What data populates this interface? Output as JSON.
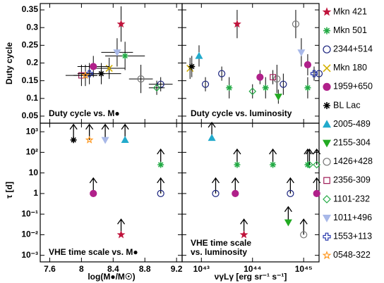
{
  "chart_data": {
    "type": "scatter",
    "ylabel_top": "Duty cycle",
    "ylabel_bottom": "τ [d]",
    "xlabel_left": "log(M●/M☉)",
    "xlabel_right": "νγLγ [erg sr⁻¹ s⁻¹]",
    "legend": [
      {
        "name": "Mkn 421",
        "color": "#c0143c",
        "marker": "star"
      },
      {
        "name": "Mkn 501",
        "color": "#22aa44",
        "marker": "asterisk"
      },
      {
        "name": "2344+514",
        "color": "#1a237e",
        "marker": "circle"
      },
      {
        "name": "Mkn 180",
        "color": "#d4b000",
        "marker": "x"
      },
      {
        "name": "1959+650",
        "color": "#b0208a",
        "marker": "dot"
      },
      {
        "name": "BL Lac",
        "color": "#000000",
        "marker": "asterisk"
      },
      {
        "name": "2005-489",
        "color": "#22aacc",
        "marker": "triangle-up"
      },
      {
        "name": "2155-304",
        "color": "#22aa22",
        "marker": "triangle-down"
      },
      {
        "name": "1426+428",
        "color": "#777777",
        "marker": "circle"
      },
      {
        "name": "2356-309",
        "color": "#a0205a",
        "marker": "square"
      },
      {
        "name": "1101-232",
        "color": "#22aa44",
        "marker": "diamond"
      },
      {
        "name": "1011+496",
        "color": "#a8b8e8",
        "marker": "triangle-down"
      },
      {
        "name": "1553+113",
        "color": "#2233aa",
        "marker": "cross"
      },
      {
        "name": "0548-322",
        "color": "#ff9922",
        "marker": "star-open"
      }
    ],
    "panels": [
      {
        "annotation": [
          "Duty cycle vs. M●"
        ],
        "xlim": [
          7.48,
          9.27
        ],
        "ylim": [
          0.03,
          0.368
        ],
        "xticks": [
          7.6,
          8,
          8.4,
          8.8,
          9.2
        ],
        "yticks": [
          0.05,
          0.1,
          0.15,
          0.2,
          0.25,
          0.3,
          0.35
        ],
        "series": [
          {
            "x": [
              8.5
            ],
            "values": [
              0.31
            ],
            "xerr": [
              0.02
            ],
            "yerr": [
              0.05
            ]
          },
          {
            "x": [
              8.55
            ],
            "values": [
              0.22
            ],
            "xerr": [
              0.25
            ],
            "yerr": [
              0.04
            ]
          },
          {
            "x": [
              9.0
            ],
            "values": [
              0.14
            ],
            "xerr": [
              0.15
            ],
            "yerr": [
              0.02
            ]
          },
          {
            "x": [
              8.35
            ],
            "values": [
              0.185
            ],
            "xerr": [
              0.2
            ],
            "yerr": [
              0.03
            ]
          },
          {
            "x": [
              8.15
            ],
            "values": [
              0.19
            ],
            "xerr": [
              0.2
            ],
            "yerr": [
              0.03
            ]
          },
          {
            "x": [
              8.25
            ],
            "values": [
              0.17
            ],
            "xerr": [
              0.25
            ],
            "yerr": [
              0.03
            ]
          },
          {
            "x": [],
            "values": []
          },
          {
            "x": [],
            "values": []
          },
          {
            "x": [
              8.75
            ],
            "values": [
              0.155
            ],
            "xerr": [
              0.15
            ],
            "yerr": [
              0.04
            ]
          },
          {
            "x": [
              8.0
            ],
            "values": [
              0.165
            ],
            "xerr": [
              0.2
            ],
            "yerr": [
              0.03
            ]
          },
          {
            "x": [
              8.95
            ],
            "values": [
              0.13
            ],
            "xerr": [
              0.1
            ],
            "yerr": [
              0.02
            ]
          },
          {
            "x": [
              8.45
            ],
            "values": [
              0.23
            ],
            "xerr": [
              0.2
            ],
            "yerr": [
              0.04
            ]
          },
          {
            "x": [
              8.1
            ],
            "values": [
              0.17
            ],
            "xerr": [
              0.15
            ],
            "yerr": [
              0.03
            ]
          },
          {
            "x": [
              8.05
            ],
            "values": [
              0.165
            ],
            "xerr": [
              0.15
            ],
            "yerr": [
              0.03
            ]
          }
        ]
      },
      {
        "annotation": [
          "Duty cycle vs. luminosity"
        ],
        "xscale": "log",
        "xlim": [
          4.2e+42,
          2e+45
        ],
        "ylim": [
          0.03,
          0.368
        ],
        "xticks": [
          {
            "value": 1e+43,
            "label": "10⁴³"
          },
          {
            "value": 1e+44,
            "label": "10⁴⁴"
          },
          {
            "value": 1e+45,
            "label": "10⁴⁵"
          }
        ],
        "yticks": [
          0.05,
          0.1,
          0.15,
          0.2,
          0.25,
          0.3,
          0.35
        ],
        "series": [
          {
            "x": [
              5e+43
            ],
            "values": [
              0.31
            ],
            "yerr": [
              0.04
            ]
          },
          {
            "x": [
              3.5e+43,
              1.8e+44,
              1.2e+45
            ],
            "values": [
              0.13,
              0.13,
              0.13
            ],
            "yerr": [
              0.03,
              0.03,
              0.03
            ]
          },
          {
            "x": [
              1.2e+43,
              2.5e+43,
              4e+44,
              2e+45
            ],
            "values": [
              0.14,
              0.17,
              0.14,
              0.17
            ],
            "yerr": [
              0.02,
              0.02,
              0.03,
              0.02
            ]
          },
          {
            "x": [
              6e+42
            ],
            "values": [
              0.185
            ],
            "yerr": [
              0.03
            ]
          },
          {
            "x": [
              1.4e+44,
              1.2e+45
            ],
            "values": [
              0.16,
              0.195
            ],
            "yerr": [
              0.02,
              0.03
            ]
          },
          {
            "x": [
              6.5e+42
            ],
            "values": [
              0.19
            ],
            "yerr": [
              0.03
            ]
          },
          {
            "x": [
              9e+42
            ],
            "values": [
              0.22
            ],
            "yerr": [
              0.03
            ]
          },
          {
            "x": [
              3.2e+44
            ],
            "values": [
              0.105
            ],
            "yerr": [
              0.02
            ]
          },
          {
            "x": [
              7e+44,
              3e+44
            ],
            "values": [
              0.31,
              0.155
            ],
            "yerr": [
              0.04,
              0.04
            ]
          },
          {
            "x": [
              2.5e+44
            ],
            "values": [
              0.16
            ],
            "yerr": [
              0.02
            ]
          },
          {
            "x": [
              1e+44
            ],
            "values": [
              0.12
            ],
            "yerr": [
              0.02
            ]
          },
          {
            "x": [
              9e+44
            ],
            "values": [
              0.23
            ],
            "yerr": [
              0.04
            ]
          },
          {
            "x": [
              1.6e+45
            ],
            "values": [
              0.17
            ],
            "yerr": [
              0.02
            ]
          },
          {
            "x": [],
            "values": []
          }
        ]
      },
      {
        "annotation": [
          "VHE time scale vs. M●"
        ],
        "lower_limits": true,
        "yscale": "log",
        "xlim": [
          7.48,
          9.27
        ],
        "ylim": [
          0.00048,
          2600
        ],
        "xticks": [
          7.6,
          8,
          8.4,
          8.8,
          9.2
        ],
        "yticks": [
          {
            "value": 0.001,
            "label": "10⁻³"
          },
          {
            "value": 0.01,
            "label": "10⁻²"
          },
          {
            "value": 0.1,
            "label": "10⁻¹"
          },
          1,
          10,
          {
            "value": 100,
            "label": "10²"
          },
          {
            "value": 1000,
            "label": "10³"
          }
        ],
        "series": [
          {
            "x": [
              8.5
            ],
            "values": [
              0.01
            ]
          },
          {
            "x": [
              9.0
            ],
            "values": [
              25
            ]
          },
          {
            "x": [
              9.0
            ],
            "values": [
              1
            ]
          },
          {
            "x": [],
            "values": []
          },
          {
            "x": [
              8.15
            ],
            "values": [
              1
            ]
          },
          {
            "x": [
              7.9
            ],
            "values": [
              400
            ]
          },
          {
            "x": [
              8.55
            ],
            "values": [
              400
            ]
          },
          {
            "x": [],
            "values": []
          },
          {
            "x": [],
            "values": []
          },
          {
            "x": [],
            "values": []
          },
          {
            "x": [],
            "values": []
          },
          {
            "x": [
              8.3
            ],
            "values": [
              400
            ]
          },
          {
            "x": [],
            "values": []
          },
          {
            "x": [
              8.1
            ],
            "values": [
              400
            ]
          }
        ]
      },
      {
        "annotation": [
          "VHE time scale",
          "vs. luminosity"
        ],
        "lower_limits": true,
        "xscale": "log",
        "yscale": "log",
        "xlim": [
          4.2e+42,
          2e+45
        ],
        "ylim": [
          0.00048,
          2600
        ],
        "xticks": [
          {
            "value": 1e+43,
            "label": "10⁴³"
          },
          {
            "value": 1e+44,
            "label": "10⁴⁴"
          },
          {
            "value": 1e+45,
            "label": "10⁴⁵"
          }
        ],
        "yticks": [
          {
            "value": 0.001,
            "label": "10⁻³"
          },
          {
            "value": 0.01,
            "label": "10⁻²"
          },
          {
            "value": 0.1,
            "label": "10⁻¹"
          },
          1,
          10,
          {
            "value": 100,
            "label": "10²"
          },
          {
            "value": 1000,
            "label": "10³"
          }
        ],
        "series": [
          {
            "x": [
              6.8e+43
            ],
            "values": [
              0.01
            ]
          },
          {
            "x": [
              5e+43,
              2.5e+44,
              1.2e+45
            ],
            "values": [
              25,
              25,
              25
            ]
          },
          {
            "x": [
              1.9e+43,
              5.5e+44
            ],
            "values": [
              1,
              1
            ]
          },
          {
            "x": [],
            "values": []
          },
          {
            "x": [
              4.6e+43,
              1.8e+45
            ],
            "values": [
              1,
              1
            ]
          },
          {
            "x": [],
            "values": []
          },
          {
            "x": [
              1.6e+43
            ],
            "values": [
              500
            ]
          },
          {
            "x": [
              5e+44
            ],
            "values": [
              0.04
            ]
          },
          {
            "x": [
              1e+45
            ],
            "values": [
              0.01
            ]
          },
          {
            "x": [],
            "values": []
          },
          {
            "x": [
              1.3e+45,
              1.8e+45
            ],
            "values": [
              25,
              25
            ]
          },
          {
            "x": [],
            "values": []
          },
          {
            "x": [],
            "values": []
          },
          {
            "x": [],
            "values": []
          }
        ]
      }
    ]
  }
}
